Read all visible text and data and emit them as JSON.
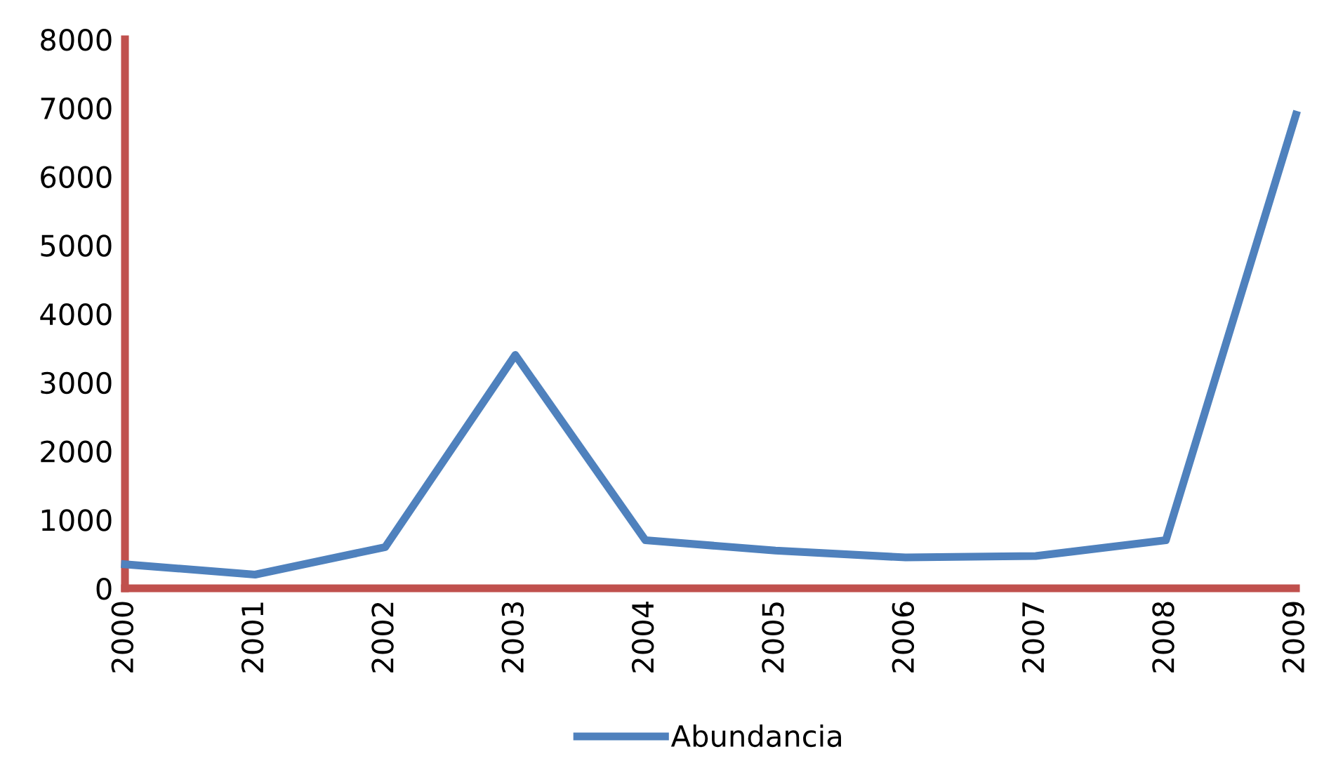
{
  "chart_data": {
    "type": "line",
    "x": [
      2000,
      2001,
      2002,
      2003,
      2004,
      2005,
      2006,
      2007,
      2008,
      2009
    ],
    "series": [
      {
        "name": "Abundancia",
        "color": "#4f81bd",
        "values": [
          350,
          200,
          600,
          3400,
          700,
          550,
          450,
          470,
          700,
          6900
        ]
      }
    ],
    "xlim": [
      2000,
      2009
    ],
    "xticks": [
      2000,
      2001,
      2002,
      2003,
      2004,
      2005,
      2006,
      2007,
      2008,
      2009
    ],
    "ylim": [
      0,
      8000
    ],
    "yticks": [
      0,
      1000,
      2000,
      3000,
      4000,
      5000,
      6000,
      7000,
      8000
    ],
    "grid": false,
    "legend": "bottom",
    "marker": "none",
    "line_style": "solid"
  }
}
